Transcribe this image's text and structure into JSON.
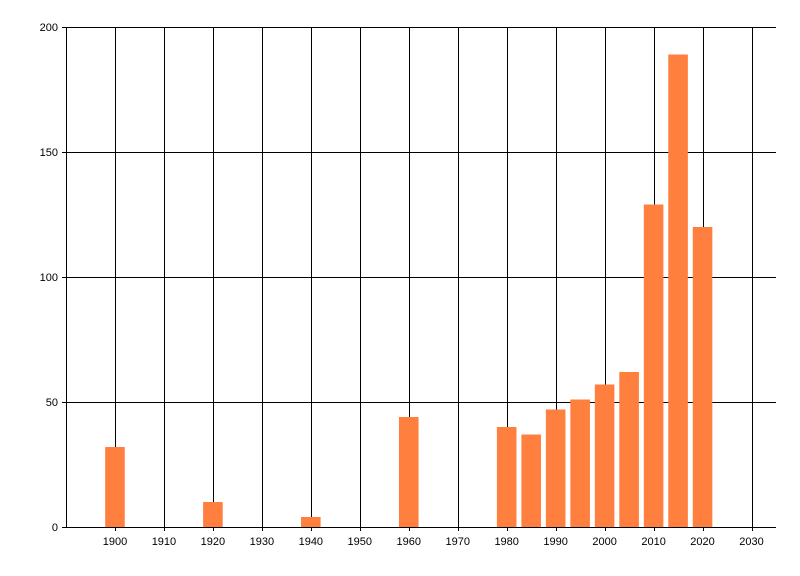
{
  "chart_data": {
    "type": "bar",
    "title": "",
    "xlabel": "",
    "ylabel": "",
    "x": [
      1900,
      1920,
      1940,
      1960,
      1980,
      1985,
      1990,
      1995,
      2000,
      2005,
      2010,
      2015,
      2020
    ],
    "values": [
      32,
      10,
      4,
      44,
      40,
      37,
      47,
      51,
      57,
      62,
      129,
      189,
      120
    ],
    "bar_width": 4,
    "xlim": [
      1890,
      2035
    ],
    "ylim": [
      0,
      200
    ],
    "x_ticks": [
      1900,
      1910,
      1920,
      1930,
      1940,
      1950,
      1960,
      1970,
      1980,
      1990,
      2000,
      2010,
      2020,
      2030
    ],
    "y_ticks": [
      0,
      50,
      100,
      150,
      200
    ],
    "grid": true,
    "bar_color": "#ff7f3f",
    "grid_color": "#000000"
  }
}
